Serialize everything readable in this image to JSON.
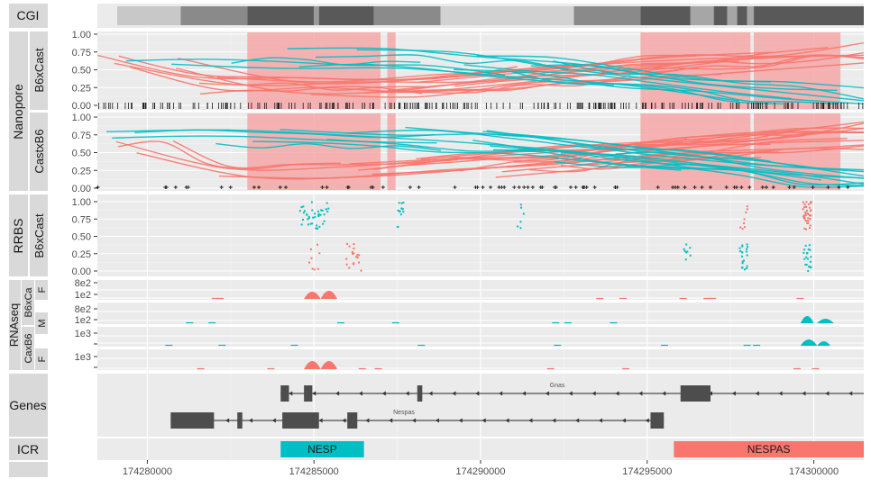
{
  "chart_data": {
    "type": "genome-track",
    "colors": {
      "maternal": "#f8766d",
      "paternal": "#00bfc4",
      "gene": "#4d4d4d",
      "highlight": "#f4a7a7",
      "panel": "#ebebeb",
      "strip": "#d9d9d9"
    },
    "x_axis": {
      "range": [
        174278500,
        174301500
      ],
      "ticks": [
        174280000,
        174285000,
        174290000,
        174295000,
        174300000
      ],
      "tick_labels": [
        "174280000",
        "174285000",
        "174290000",
        "174295000",
        "174300000"
      ]
    },
    "strips": {
      "cgi": "CGI",
      "nanopore": "Nanopore",
      "nanopore_b6xcast": "B6xCast",
      "nanopore_castxb6": "CastxB6",
      "rrbs": "RRBS",
      "rrbs_b6xcast": "B6xCast",
      "rnaseq": "RNAseq",
      "rnaseq_b6xca": "B6xCa",
      "rnaseq_caxb6": "CaxB6",
      "rnaseq_f1": "F",
      "rnaseq_m": "M",
      "rnaseq_f2": "F",
      "genes": "Genes",
      "icr": "ICR"
    },
    "methylation_y_ticks": [
      "1.00",
      "0.75",
      "0.50",
      "0.25",
      "0.00"
    ],
    "rnaseq_y_ticks": {
      "track1": [
        "8e2",
        "1e2"
      ],
      "track2": [
        "8e2",
        "1e2"
      ],
      "track3": [
        "1e3",
        ""
      ],
      "track4": [
        "1e3",
        ""
      ]
    },
    "cgi_blocks": [
      {
        "start": 174278500,
        "end": 174279000,
        "shade": "#e4e4e4"
      },
      {
        "start": 174279000,
        "end": 174281000,
        "shade": "#c8c8c8"
      },
      {
        "start": 174281000,
        "end": 174283000,
        "shade": "#8a8a8a"
      },
      {
        "start": 174283000,
        "end": 174285000,
        "shade": "#595959"
      },
      {
        "start": 174285000,
        "end": 174285150,
        "shade": "#9a9a9a"
      },
      {
        "start": 174285150,
        "end": 174286800,
        "shade": "#595959"
      },
      {
        "start": 174286800,
        "end": 174288800,
        "shade": "#8a8a8a"
      },
      {
        "start": 174288800,
        "end": 174292800,
        "shade": "#d2d2d2"
      },
      {
        "start": 174292800,
        "end": 174294800,
        "shade": "#8a8a8a"
      },
      {
        "start": 174294800,
        "end": 174296300,
        "shade": "#595959"
      },
      {
        "start": 174296300,
        "end": 174297000,
        "shade": "#a6a6a6"
      },
      {
        "start": 174297000,
        "end": 174297400,
        "shade": "#595959"
      },
      {
        "start": 174297400,
        "end": 174297700,
        "shade": "#a6a6a6"
      },
      {
        "start": 174297700,
        "end": 174298000,
        "shade": "#595959"
      },
      {
        "start": 174298000,
        "end": 174298200,
        "shade": "#a6a6a6"
      },
      {
        "start": 174298200,
        "end": 174301500,
        "shade": "#595959"
      }
    ],
    "highlight_regions": [
      {
        "start": 174283000,
        "end": 174287000
      },
      {
        "start": 174287200,
        "end": 174287450
      },
      {
        "start": 174294800,
        "end": 174298100
      },
      {
        "start": 174298200,
        "end": 174300800
      }
    ],
    "genes": [
      {
        "name": "Gnas",
        "row": 0,
        "start": 174284000,
        "end": 174301500,
        "direction": "left",
        "exons": [
          [
            174284000,
            174284250
          ],
          [
            174284700,
            174284950
          ],
          [
            174288100,
            174288250
          ],
          [
            174296000,
            174296900
          ]
        ]
      },
      {
        "name": "Nespas",
        "row": 1,
        "start": 174280700,
        "end": 174295500,
        "direction": "left",
        "exons": [
          [
            174280700,
            174282000
          ],
          [
            174282700,
            174282850
          ],
          [
            174284050,
            174285150
          ],
          [
            174286000,
            174286300
          ],
          [
            174295100,
            174295500
          ]
        ]
      }
    ],
    "icr": [
      {
        "name": "NESP",
        "start": 174284000,
        "end": 174286500,
        "color": "#00bfc4"
      },
      {
        "name": "NESPAS",
        "start": 174295800,
        "end": 174301500,
        "color": "#f8766d"
      }
    ]
  }
}
